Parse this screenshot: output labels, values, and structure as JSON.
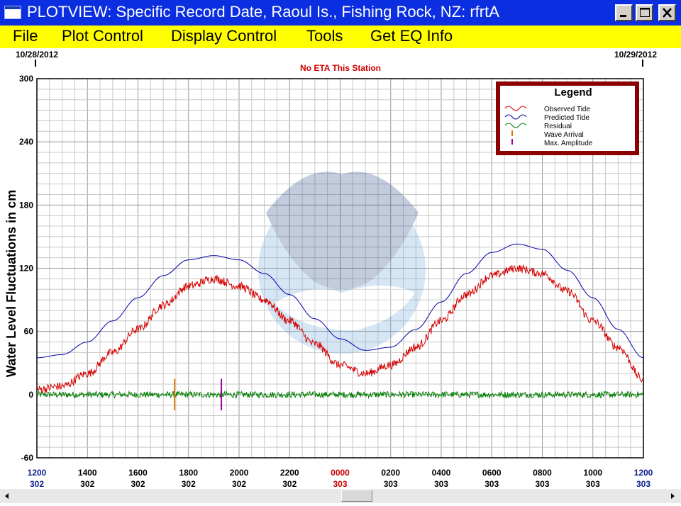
{
  "window": {
    "title": "PLOTVIEW: Specific Record Date, Raoul Is., Fishing Rock, NZ: rfrtA",
    "minimize_label": "_",
    "maximize_label": "□",
    "close_label": "X"
  },
  "menu": {
    "items": [
      "File",
      "Plot Control",
      "Display Control",
      "Tools",
      "Get EQ Info"
    ]
  },
  "chart_data": {
    "type": "line",
    "date_left": "10/28/2012",
    "date_right": "10/29/2012",
    "notice": "No ETA This Station",
    "ylabel": "Water Level Fluctuations in cm",
    "ylim": [
      -60,
      300
    ],
    "yticks": [
      300,
      240,
      180,
      120,
      60,
      0,
      -60
    ],
    "xlim_hours": [
      12,
      36
    ],
    "grid": true,
    "xtick_labels": [
      {
        "time": "1200",
        "day": "302",
        "color": "#0b1f8c"
      },
      {
        "time": "1400",
        "day": "302",
        "color": "#000000"
      },
      {
        "time": "1600",
        "day": "302",
        "color": "#000000"
      },
      {
        "time": "1800",
        "day": "302",
        "color": "#000000"
      },
      {
        "time": "2000",
        "day": "302",
        "color": "#000000"
      },
      {
        "time": "2200",
        "day": "302",
        "color": "#000000"
      },
      {
        "time": "0000",
        "day": "303",
        "color": "#cc0000"
      },
      {
        "time": "0200",
        "day": "303",
        "color": "#000000"
      },
      {
        "time": "0400",
        "day": "303",
        "color": "#000000"
      },
      {
        "time": "0600",
        "day": "303",
        "color": "#000000"
      },
      {
        "time": "0800",
        "day": "303",
        "color": "#000000"
      },
      {
        "time": "1000",
        "day": "303",
        "color": "#000000"
      },
      {
        "time": "1200",
        "day": "303",
        "color": "#0b1f8c"
      }
    ],
    "legend": {
      "title": "Legend",
      "placement": "top-right",
      "entries": [
        {
          "label": "Observed Tide",
          "color": "#d40000",
          "kind": "wave"
        },
        {
          "label": "Predicted Tide",
          "color": "#0000aa",
          "kind": "wave"
        },
        {
          "label": "Residual",
          "color": "#008000",
          "kind": "wave"
        },
        {
          "label": "Wave Arrival",
          "color": "#e07800",
          "kind": "tick"
        },
        {
          "label": "Max. Amplitude",
          "color": "#a000a0",
          "kind": "tick"
        }
      ]
    },
    "series": [
      {
        "name": "Predicted Tide",
        "color": "#0000aa",
        "x": [
          12,
          13,
          14,
          15,
          16,
          17,
          18,
          19,
          20,
          21,
          22,
          23,
          24,
          25,
          26,
          27,
          28,
          29,
          30,
          31,
          32,
          33,
          34,
          35,
          36
        ],
        "y": [
          35,
          38,
          50,
          70,
          92,
          113,
          128,
          132,
          128,
          115,
          95,
          72,
          53,
          42,
          45,
          62,
          88,
          115,
          135,
          143,
          138,
          118,
          92,
          62,
          35
        ],
        "noise": 0
      },
      {
        "name": "Observed Tide",
        "color": "#d40000",
        "x": [
          12,
          13,
          14,
          15,
          16,
          17,
          18,
          19,
          20,
          21,
          22,
          23,
          24,
          25,
          26,
          27,
          28,
          29,
          30,
          31,
          32,
          33,
          34,
          35,
          36
        ],
        "y": [
          5,
          8,
          20,
          40,
          62,
          85,
          103,
          110,
          103,
          90,
          70,
          48,
          28,
          20,
          28,
          45,
          70,
          95,
          113,
          120,
          115,
          98,
          70,
          45,
          14
        ],
        "noise": 4
      },
      {
        "name": "Residual",
        "color": "#008000",
        "x": [
          12,
          36
        ],
        "y": [
          0,
          0
        ],
        "noise": 3
      }
    ],
    "markers": [
      {
        "name": "Wave Arrival",
        "x": 17.45,
        "y_from": 15,
        "y_to": -15,
        "color": "#e07800"
      },
      {
        "name": "Max. Amplitude",
        "x": 19.3,
        "y_from": 15,
        "y_to": -15,
        "color": "#a000a0"
      }
    ]
  }
}
